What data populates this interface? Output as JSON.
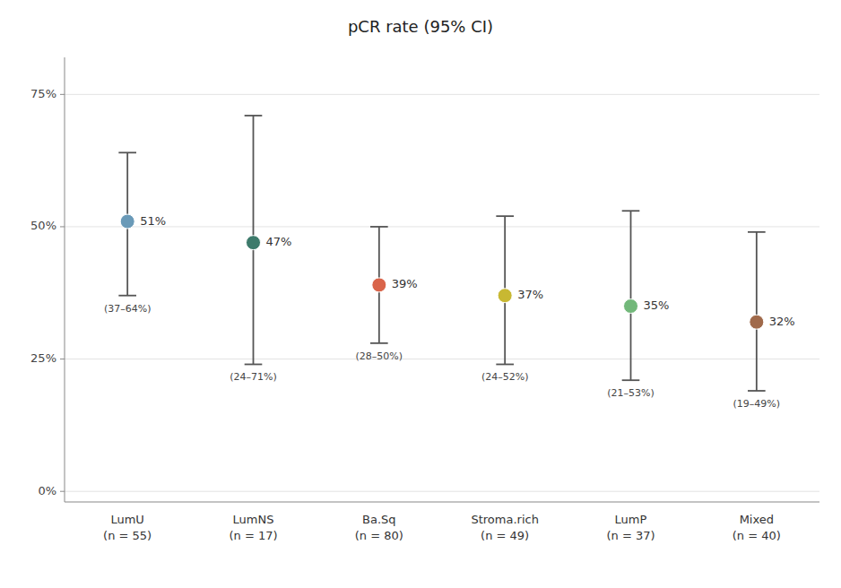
{
  "chart_data": {
    "type": "dot",
    "title": "pCR rate (95% CI)",
    "categories": [
      "LumU\n(n = 55)",
      "LumNS\n(n = 17)",
      "Ba.Sq\n(n = 80)",
      "Stroma.rich\n(n = 49)",
      "LumP\n(n = 37)",
      "Mixed\n(n = 40)"
    ],
    "values": [
      51,
      47,
      39,
      37,
      35,
      32
    ],
    "value_labels": [
      "51%",
      "47%",
      "39%",
      "37%",
      "35%",
      "32%"
    ],
    "ci_low": [
      37,
      24,
      28,
      24,
      21,
      19
    ],
    "ci_high": [
      64,
      71,
      50,
      52,
      53,
      49
    ],
    "ci_labels": [
      "(37–64%)",
      "(24–71%)",
      "(28–50%)",
      "(24–52%)",
      "(21–53%)",
      "(19–49%)"
    ],
    "colors": [
      "#6a9ab8",
      "#3d7a6b",
      "#d9644a",
      "#c8b832",
      "#72b87a",
      "#a0694a"
    ],
    "ylim": [
      -2,
      82
    ],
    "yticks": [
      {
        "value": 0,
        "label": "0%"
      },
      {
        "value": 25,
        "label": "25%"
      },
      {
        "value": 50,
        "label": "50%"
      },
      {
        "value": 75,
        "label": "75%"
      }
    ],
    "grid": true,
    "data_labels": true
  }
}
